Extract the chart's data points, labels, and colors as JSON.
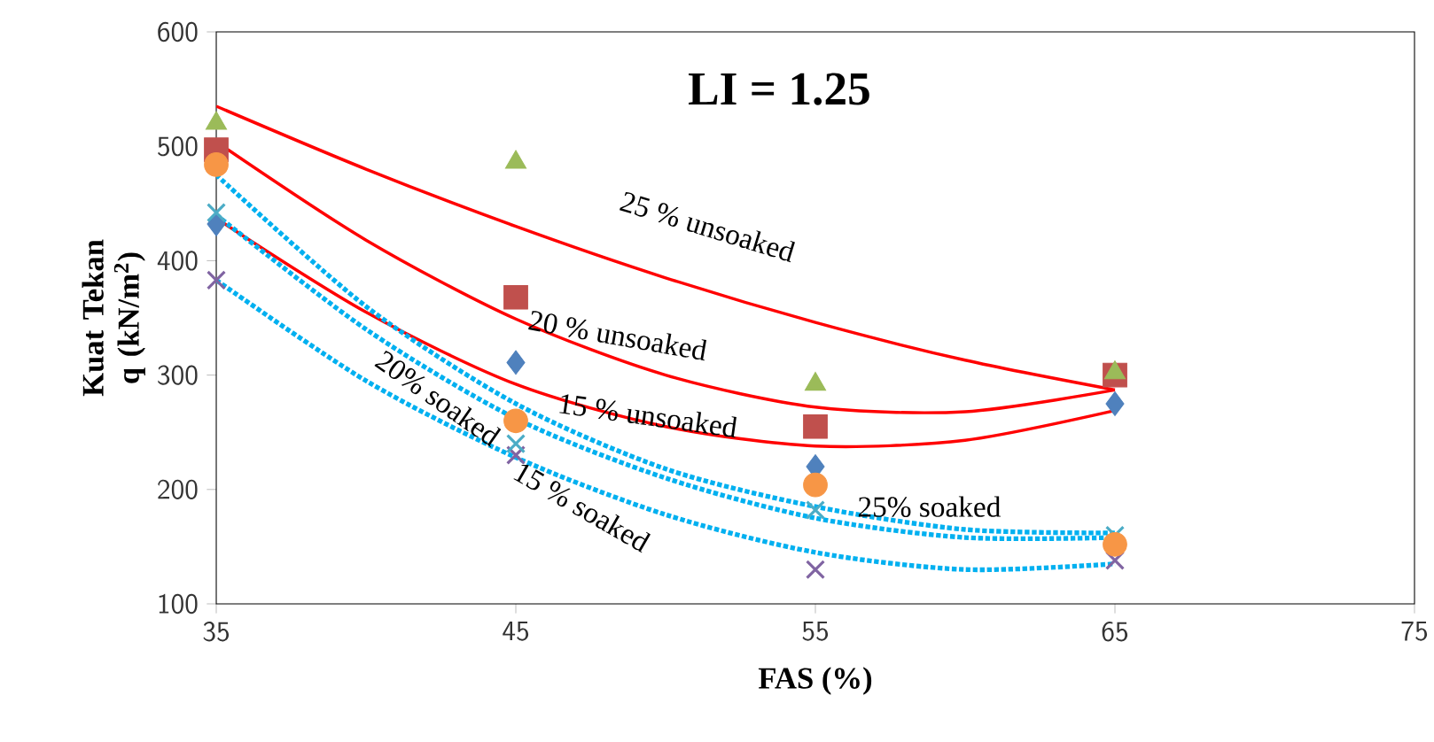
{
  "chart_data": {
    "type": "scatter",
    "xlabel": "FAS (%)",
    "ylabel": "Kuat Tekan q (kN/m$^{2}$)",
    "xlim": [
      35,
      75
    ],
    "xticks": [
      35,
      45,
      55,
      65,
      75
    ],
    "ylim": [
      100,
      600
    ],
    "yticks": [
      100,
      200,
      300,
      400,
      500,
      600
    ],
    "grid": false,
    "series": [
      {
        "marker": "diamond",
        "color": "#4f81bd",
        "x": [
          35,
          45,
          55,
          65
        ],
        "values": [
          432,
          311,
          220,
          275
        ]
      },
      {
        "marker": "square",
        "color": "#c0504d",
        "x": [
          35,
          45,
          55,
          65
        ],
        "values": [
          497,
          368,
          255,
          300
        ]
      },
      {
        "marker": "triangle",
        "color": "#9bbb59",
        "x": [
          35,
          45,
          55,
          65
        ],
        "values": [
          520,
          486,
          292,
          302
        ]
      },
      {
        "marker": "cross",
        "color": "#8064a2",
        "x": [
          35,
          45,
          55,
          65
        ],
        "values": [
          383,
          230,
          130,
          138
        ]
      },
      {
        "marker": "cross",
        "color": "#4bacc6",
        "x": [
          35,
          45,
          55,
          65
        ],
        "values": [
          442,
          240,
          182,
          160
        ]
      },
      {
        "marker": "circle",
        "color": "#f79646",
        "x": [
          35,
          45,
          55,
          65
        ],
        "values": [
          484,
          260,
          204,
          152
        ]
      },
      {
        "type": "line",
        "line_style": "solid",
        "color": "#ff0000",
        "x": [
          35,
          40,
          45,
          50,
          55,
          60,
          65
        ],
        "values": [
          535,
          480,
          430,
          385,
          346,
          313,
          287
        ]
      },
      {
        "type": "line",
        "line_style": "solid",
        "color": "#ff0000",
        "x": [
          35,
          40,
          45,
          50,
          55,
          60,
          65
        ],
        "values": [
          504,
          418,
          349,
          300,
          272,
          268,
          287
        ]
      },
      {
        "type": "line",
        "line_style": "solid",
        "color": "#ff0000",
        "x": [
          35,
          40,
          45,
          50,
          55,
          60,
          65
        ],
        "values": [
          437,
          355,
          292,
          255,
          238,
          243,
          269
        ]
      },
      {
        "type": "line",
        "line_style": "dotted",
        "color": "#00b0f0",
        "x": [
          35,
          40,
          45,
          50,
          55,
          60,
          65
        ],
        "values": [
          475,
          360,
          275,
          218,
          185,
          165,
          162
        ]
      },
      {
        "type": "line",
        "line_style": "dotted",
        "color": "#00b0f0",
        "x": [
          35,
          40,
          45,
          50,
          55,
          60,
          65
        ],
        "values": [
          440,
          340,
          262,
          210,
          175,
          158,
          158
        ]
      },
      {
        "type": "line",
        "line_style": "dotted",
        "color": "#00b0f0",
        "x": [
          35,
          40,
          45,
          50,
          55,
          60,
          65
        ],
        "values": [
          383,
          295,
          228,
          178,
          145,
          130,
          135
        ]
      }
    ],
    "annotations": [
      "LI = 1.25",
      "25 % unsoaked",
      "20 % unsoaked",
      "15 % unsoaked",
      "20% soaked",
      "15 % soaked",
      "25% soaked"
    ]
  }
}
